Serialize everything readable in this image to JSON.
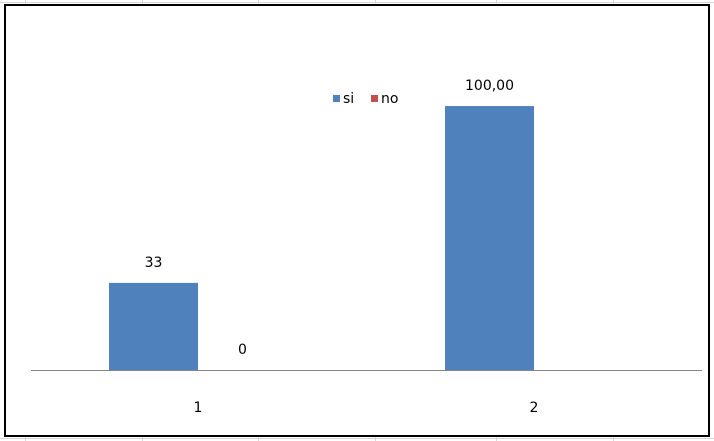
{
  "chart_data": {
    "type": "bar",
    "categories": [
      "1",
      "2"
    ],
    "series": [
      {
        "name": "si",
        "values": [
          33,
          100
        ],
        "labels": [
          "33",
          "100,00"
        ],
        "color": "#4f81bd"
      },
      {
        "name": "no",
        "values": [
          0,
          null
        ],
        "labels": [
          "0",
          ""
        ],
        "color": "#c0504d"
      }
    ],
    "ylim": [
      0,
      122
    ],
    "legend": "top-center",
    "grid": false
  }
}
